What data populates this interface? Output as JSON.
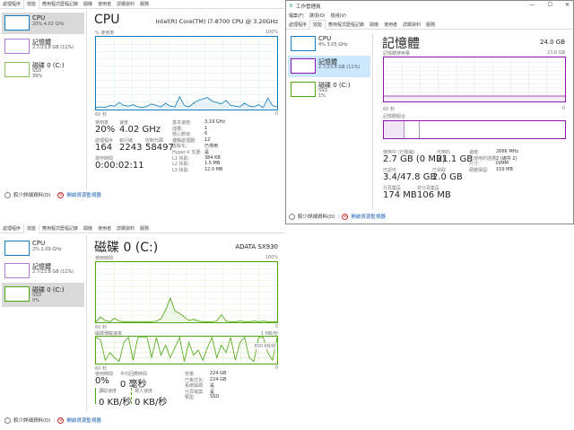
{
  "tabs": [
    "處理程序",
    "效能",
    "應用程式歷程記錄",
    "開機",
    "使用者",
    "詳細資料",
    "服務"
  ],
  "colors": {
    "cpu": "#117dbb",
    "memory": "#8b12ae",
    "disk": "#4da60c",
    "selected_gray": "#dadada",
    "selected_blue": "#cce8ff",
    "link": "#1a5fb4"
  },
  "footer": {
    "fewer_details": "較少詳細資料(D)",
    "open_resource_monitor": "開啟資源監視器"
  },
  "panel_cpu": {
    "sidebar": [
      {
        "name": "CPU",
        "sub1": "20% 4.02 GHz",
        "sub2": ""
      },
      {
        "name": "記憶體",
        "sub1": "2.7/23.8 GB (11%)",
        "sub2": ""
      },
      {
        "name": "磁碟 0 (C:)",
        "sub1": "SSD",
        "sub2": "39%"
      }
    ],
    "title": "CPU",
    "model": "Intel(R) Core(TM) i7-8700 CPU @ 3.20GHz",
    "graph_label": "% 使用率",
    "graph_max": "100%",
    "time_left": "60 秒",
    "time_right": "0",
    "graph_values": [
      2,
      3,
      2,
      5,
      4,
      9,
      5,
      4,
      6,
      3,
      2,
      4,
      7,
      5,
      3,
      8,
      4,
      3,
      17,
      5,
      3,
      8,
      12,
      14,
      16,
      11,
      9,
      7,
      12,
      5,
      4,
      3,
      8,
      4,
      3,
      6,
      2,
      15,
      5,
      3
    ],
    "stats": {
      "util_label": "使用率",
      "util": "20%",
      "speed_label": "速度",
      "speed": "4.02 GHz",
      "proc_label": "處理程序",
      "proc": "164",
      "threads_label": "執行緒",
      "threads": "2243",
      "handles_label": "控制代碼",
      "handles": "58497",
      "uptime_label": "運作時間",
      "uptime": "0:00:02:11"
    },
    "specs": [
      [
        "基本速度:",
        "3.19 GHz"
      ],
      [
        "插槽:",
        "1"
      ],
      [
        "核心數目:",
        "6"
      ],
      [
        "邏輯處理器:",
        "12"
      ],
      [
        "虛擬化:",
        "已停用"
      ],
      [
        "Hyper-V 支援:",
        "是"
      ],
      [
        "L1 快取:",
        "384 KB"
      ],
      [
        "L2 快取:",
        "1.5 MB"
      ],
      [
        "L3 快取:",
        "12.0 MB"
      ]
    ]
  },
  "panel_memory": {
    "window_title": "工作管理員",
    "window_controls": {
      "minimize": "—",
      "maximize": "☐",
      "close": "✕"
    },
    "menu": [
      "檔案(F)",
      "選項(O)",
      "檢視(V)"
    ],
    "sidebar": [
      {
        "name": "CPU",
        "sub1": "4% 3.05 GHz",
        "sub2": ""
      },
      {
        "name": "記憶體",
        "sub1": "2.7/23.8 GB (11%)",
        "sub2": ""
      },
      {
        "name": "磁碟 0 (C:)",
        "sub1": "SSD",
        "sub2": "1%"
      }
    ],
    "title": "記憶體",
    "total": "24.0 GB",
    "graph_label": "記憶體使用量",
    "graph_max": "23.8 GB",
    "time_left": "60 秒",
    "time_right": "0",
    "usage_percent": 11,
    "composition_label": "記憶體組合",
    "stats": {
      "inuse_label": "使用中 (已壓縮)",
      "inuse": "2.7 GB (0 MB)",
      "avail_label": "可用的",
      "avail": "21.1 GB",
      "committed_label": "已認可",
      "committed": "3.4/47.8 GB",
      "cached_label": "已快取",
      "cached": "2.0 GB",
      "paged_label": "分頁集區",
      "paged": "174 MB",
      "nonpaged_label": "非分頁集區",
      "nonpaged": "106 MB"
    },
    "specs": [
      [
        "速度:",
        "2666 MHz"
      ],
      [
        "已使用的插槽:",
        "2 (總共 2)"
      ],
      [
        "尺寸:",
        "DIMM"
      ],
      [
        "硬體保留:",
        "159 MB"
      ]
    ]
  },
  "panel_disk": {
    "sidebar": [
      {
        "name": "CPU",
        "sub1": "2% 2.09 GHz",
        "sub2": ""
      },
      {
        "name": "記憶體",
        "sub1": "2.7/23.8 GB (11%)",
        "sub2": ""
      },
      {
        "name": "磁碟 0 (C:)",
        "sub1": "SSD",
        "sub2": "0%"
      }
    ],
    "title": "磁碟 0 (C:)",
    "model": "ADATA SX930",
    "graph_label": "使用時間",
    "graph_max": "100%",
    "time_left": "60 秒",
    "time_right": "0",
    "active_values": [
      0,
      8,
      2,
      0,
      6,
      1,
      0,
      0,
      0,
      0,
      0,
      0,
      0,
      1,
      5,
      20,
      40,
      18,
      14,
      8,
      2,
      4,
      1,
      0,
      0,
      0,
      1,
      12,
      1,
      0,
      0,
      1,
      0,
      0,
      1,
      0,
      1,
      0,
      0,
      0
    ],
    "rate_label": "磁碟傳輸速率",
    "rate_max": "1 MB/秒",
    "rate_mid": "800 KB/秒",
    "rate_values": [
      100,
      90,
      10,
      40,
      20,
      5,
      80,
      100,
      10,
      100,
      100,
      100,
      20,
      100,
      30,
      70,
      20,
      60,
      100,
      5,
      80,
      30,
      50,
      10,
      60,
      100,
      20,
      70,
      40,
      100,
      10,
      80,
      100,
      20,
      5,
      100,
      100,
      40,
      10,
      100
    ],
    "stats": {
      "active_label": "使用時間",
      "active": "0%",
      "resp_label": "平均回應時間",
      "resp": "0 毫秒",
      "read_label": "讀取速度",
      "read": "0 KB/秒",
      "write_label": "寫入速度",
      "write": "0 KB/秒"
    },
    "specs": [
      [
        "容量:",
        "224 GB"
      ],
      [
        "已格式化:",
        "224 GB"
      ],
      [
        "系統磁碟:",
        "是"
      ],
      [
        "分頁檔案:",
        "是"
      ],
      [
        "類型:",
        "SSD"
      ]
    ]
  }
}
